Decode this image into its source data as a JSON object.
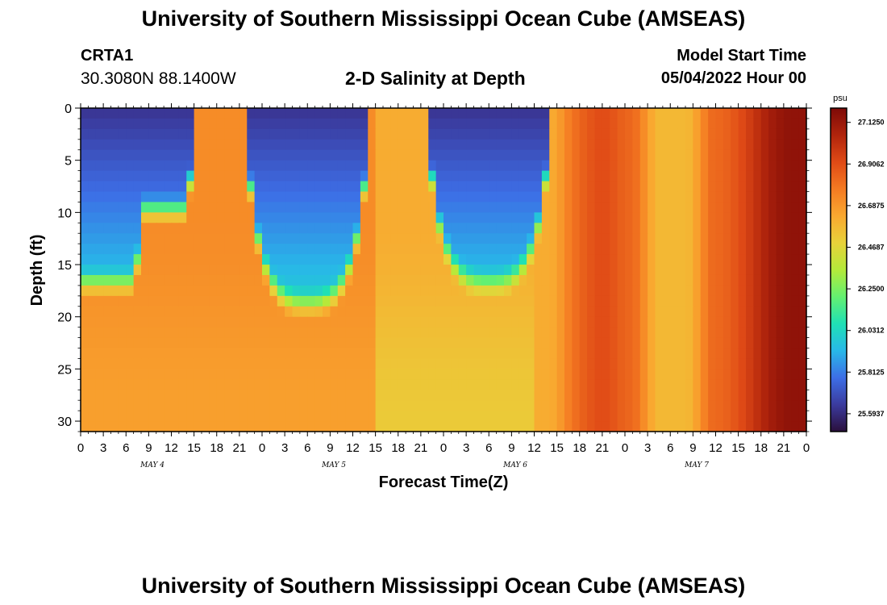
{
  "header": {
    "title": "University of Southern Mississippi Ocean Cube (AMSEAS)",
    "station": "CRTA1",
    "coordinates": "30.3080N  88.1400W",
    "plot_title": "2-D Salinity at Depth",
    "model_start_label": "Model Start Time",
    "model_start_value": "05/04/2022 Hour 00"
  },
  "footer": {
    "title": "University of Southern Mississippi Ocean Cube (AMSEAS)"
  },
  "colors": {
    "scale": [
      "#2a0f3b",
      "#3b3b9e",
      "#3d6ee6",
      "#28b8e8",
      "#1fe0b5",
      "#64f070",
      "#b4ea3a",
      "#e8d23a",
      "#f9a830",
      "#f47a22",
      "#df4a16",
      "#b0240c",
      "#7e0a07"
    ]
  },
  "chart_data": {
    "type": "heatmap",
    "xlabel": "Forecast Time(Z)",
    "ylabel": "Depth (ft)",
    "x_unit": "hours since model start",
    "x_range": [
      0,
      96
    ],
    "y_range": [
      0,
      31
    ],
    "y_reversed": true,
    "x_tick_labels": [
      "0",
      "3",
      "6",
      "9",
      "12",
      "15",
      "18",
      "21",
      "0",
      "3",
      "6",
      "9",
      "12",
      "15",
      "18",
      "21",
      "0",
      "3",
      "6",
      "9",
      "12",
      "15",
      "18",
      "21",
      "0",
      "3",
      "6",
      "9",
      "12",
      "15",
      "18",
      "21",
      "0"
    ],
    "day_labels": [
      "MAY 4",
      "MAY 5",
      "MAY 6",
      "MAY 7"
    ],
    "y_ticks": [
      0,
      5,
      10,
      15,
      20,
      25,
      30
    ],
    "colorbar": {
      "unit": "psu",
      "range": [
        25.5,
        27.2
      ],
      "tick_labels": [
        "27.1250",
        "26.9062",
        "26.6875",
        "26.4687",
        "26.2500",
        "26.0312",
        "25.8125",
        "25.5937"
      ]
    },
    "grid": false
  }
}
